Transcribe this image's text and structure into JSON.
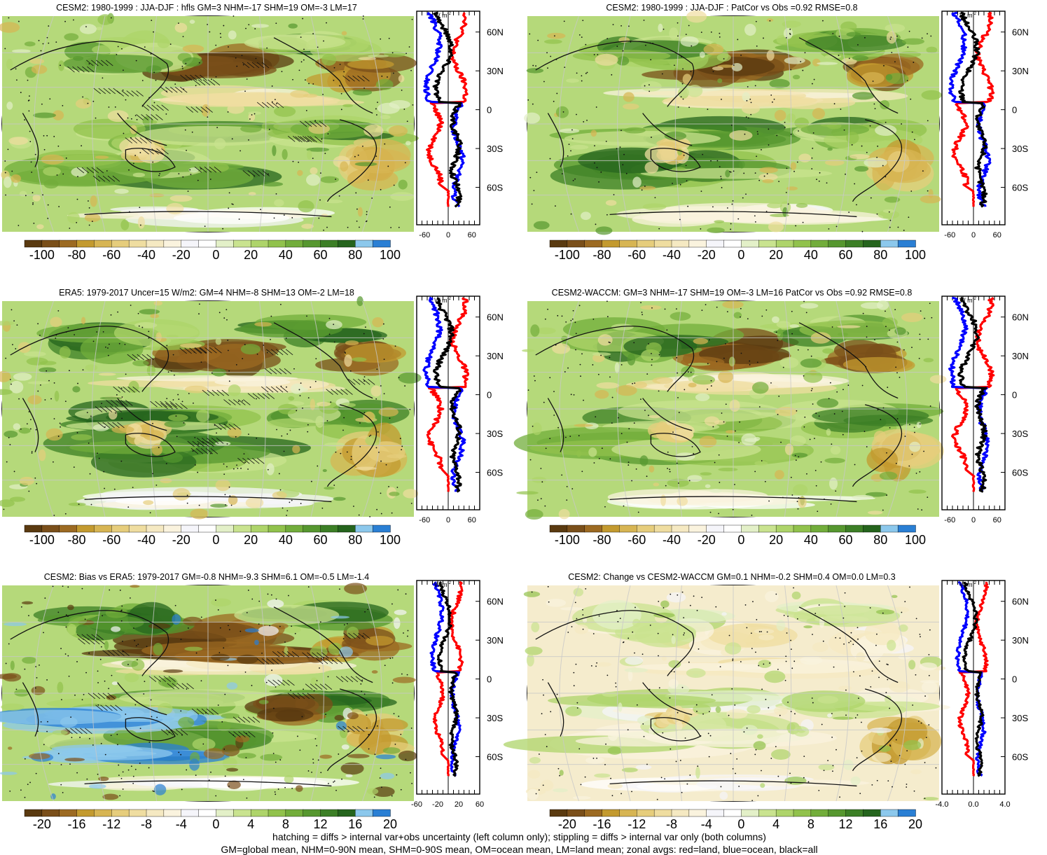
{
  "chart_data": [
    {
      "type": "heatmap",
      "title": "CESM2: 1980-1999 : JJA-DJF : hfls GM=3 NHM=-17 SHM=19 OM=-3 LM=17",
      "colorbar": {
        "ticks": [
          "-100",
          "-80",
          "-60",
          "-40",
          "-20",
          "0",
          "20",
          "40",
          "60",
          "80",
          "100"
        ]
      },
      "zonal": {
        "unit": "W m",
        "unit_sup": "-2",
        "xticks": [
          "-60",
          "0",
          "60"
        ],
        "yticks": [
          "60N",
          "30N",
          "0",
          "30S",
          "60S"
        ],
        "xlim": [
          -80,
          80
        ]
      }
    },
    {
      "type": "heatmap",
      "title": "CESM2: 1980-1999 : JJA-DJF : PatCor vs Obs =0.92 RMSE=0.8",
      "colorbar": {
        "ticks": [
          "-100",
          "-80",
          "-60",
          "-40",
          "-20",
          "0",
          "20",
          "40",
          "60",
          "80",
          "100"
        ]
      },
      "zonal": {
        "unit": "W m",
        "unit_sup": "-2",
        "xticks": [
          "-60",
          "0",
          "60"
        ],
        "yticks": [
          "60N",
          "30N",
          "0",
          "30S",
          "60S"
        ],
        "xlim": [
          -80,
          80
        ]
      }
    },
    {
      "type": "heatmap",
      "title": "ERA5: 1979-2017 Uncer=15 W/m2: GM=4 NHM=-8 SHM=13 OM=-2 LM=18",
      "colorbar": {
        "ticks": [
          "-100",
          "-80",
          "-60",
          "-40",
          "-20",
          "0",
          "20",
          "40",
          "60",
          "80",
          "100"
        ]
      },
      "zonal": {
        "unit": "W m",
        "unit_sup": "-2",
        "xticks": [
          "-60",
          "0",
          "60"
        ],
        "yticks": [
          "60N",
          "30N",
          "0",
          "30S",
          "60S"
        ],
        "xlim": [
          -80,
          80
        ]
      }
    },
    {
      "type": "heatmap",
      "title": "CESM2-WACCM: GM=3 NHM=-17 SHM=19 OM=-3 LM=16 PatCor vs Obs =0.92 RMSE=0.8",
      "colorbar": {
        "ticks": [
          "-100",
          "-80",
          "-60",
          "-40",
          "-20",
          "0",
          "20",
          "40",
          "60",
          "80",
          "100"
        ]
      },
      "zonal": {
        "unit": "W m",
        "unit_sup": "-2",
        "xticks": [
          "-60",
          "0",
          "60"
        ],
        "yticks": [
          "60N",
          "30N",
          "0",
          "30S",
          "60S"
        ],
        "xlim": [
          -80,
          80
        ]
      }
    },
    {
      "type": "heatmap",
      "title": "CESM2: Bias vs ERA5: 1979-2017 GM=-0.8 NHM=-9.3 SHM=6.1 OM=-0.5 LM=-1.4",
      "colorbar": {
        "ticks": [
          "-20",
          "-16",
          "-12",
          "-8",
          "-4",
          "0",
          "4",
          "8",
          "12",
          "16",
          "20"
        ]
      },
      "zonal": {
        "unit": "W m",
        "unit_sup": "-2",
        "xticks": [
          "-60",
          "-20",
          "20",
          "60"
        ],
        "yticks": [
          "60N",
          "30N",
          "0",
          "30S",
          "60S"
        ],
        "xlim": [
          -60,
          60
        ]
      }
    },
    {
      "type": "heatmap",
      "title": "CESM2: Change vs CESM2-WACCM GM=0.1 NHM=-0.2 SHM=0.4 OM=0.0 LM=0.3",
      "colorbar": {
        "ticks": [
          "-20",
          "-16",
          "-12",
          "-8",
          "-4",
          "0",
          "4",
          "8",
          "12",
          "16",
          "20"
        ]
      },
      "zonal": {
        "unit": "W m",
        "unit_sup": "-2",
        "xticks": [
          "-4.0",
          "0.0",
          "4.0"
        ],
        "yticks": [
          "60N",
          "30N",
          "0",
          "30S",
          "60S"
        ],
        "xlim": [
          -4,
          4
        ]
      }
    }
  ],
  "colors": {
    "scale": [
      "#5a3a10",
      "#7a4f1a",
      "#9c6a22",
      "#c39a2f",
      "#d7b553",
      "#e6cd7c",
      "#efdda0",
      "#f5e9c2",
      "#faf3de",
      "#f5f5fa",
      "#ffffff",
      "#e3f0c8",
      "#c9e38f",
      "#aed46a",
      "#91c24c",
      "#72ad3b",
      "#56972f",
      "#3c7f26",
      "#25641d",
      "#8cc8ec",
      "#2a7fd4"
    ],
    "land": "#ff0000",
    "ocean": "#0000ff",
    "all": "#000000"
  },
  "footer": {
    "line1": "hatching = diffs > internal var+obs uncertainty (left column only); stippling = diffs > internal var only (both columns)",
    "line2": "GM=global mean, NHM=0-90N mean, SHM=0-90S mean, OM=ocean mean, LM=land mean; zonal avgs: red=land, blue=ocean, black=all"
  }
}
